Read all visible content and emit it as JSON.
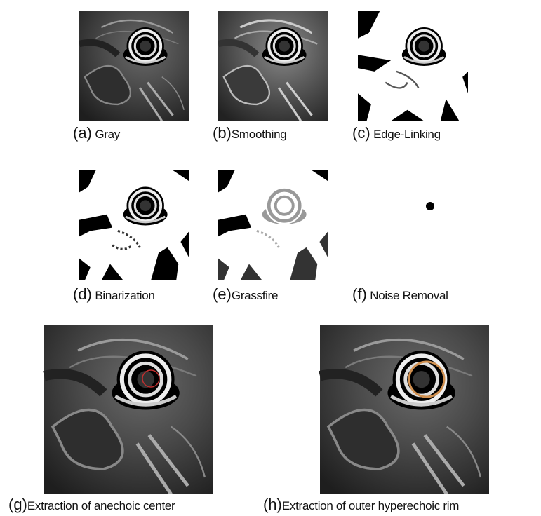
{
  "panels": [
    {
      "label": "(a)",
      "caption": "Gray"
    },
    {
      "label": "(b)",
      "caption": "Smoothing"
    },
    {
      "label": "(c)",
      "caption": "Edge-Linking"
    },
    {
      "label": "(d)",
      "caption": "Binarization"
    },
    {
      "label": "(e)",
      "caption": "Grassfire"
    },
    {
      "label": "(f)",
      "caption": "Noise Removal"
    },
    {
      "label": "(g)",
      "caption": "Extraction of anechoic center"
    },
    {
      "label": "(h)",
      "caption": "Extraction of outer hyperechoic rim"
    }
  ]
}
